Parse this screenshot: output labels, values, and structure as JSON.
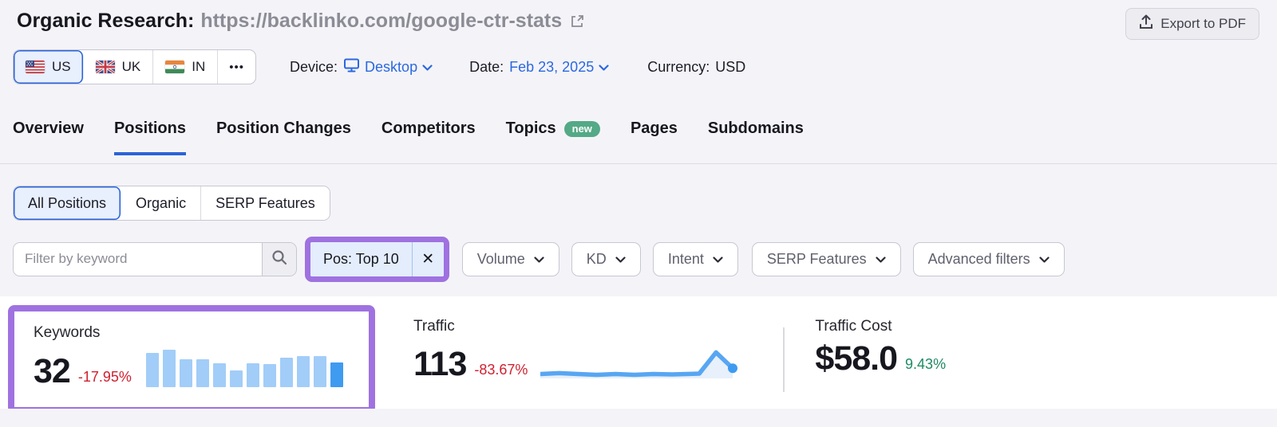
{
  "header": {
    "title_prefix": "Organic Research:",
    "title_url": "https://backlinko.com/google-ctr-stats",
    "export_label": "Export to PDF"
  },
  "controls": {
    "countries": [
      {
        "code": "US",
        "selected": true
      },
      {
        "code": "UK",
        "selected": false
      },
      {
        "code": "IN",
        "selected": false
      }
    ],
    "more_label": "•••",
    "device_label": "Device:",
    "device_value": "Desktop",
    "date_label": "Date:",
    "date_value": "Feb 23, 2025",
    "currency_label": "Currency:",
    "currency_value": "USD"
  },
  "tabs": {
    "items": [
      {
        "label": "Overview"
      },
      {
        "label": "Positions",
        "active": true
      },
      {
        "label": "Position Changes"
      },
      {
        "label": "Competitors"
      },
      {
        "label": "Topics",
        "badge": "new"
      },
      {
        "label": "Pages"
      },
      {
        "label": "Subdomains"
      }
    ]
  },
  "position_filters": {
    "items": [
      {
        "label": "All Positions",
        "selected": true
      },
      {
        "label": "Organic",
        "selected": false
      },
      {
        "label": "SERP Features",
        "selected": false
      }
    ]
  },
  "filter_bar": {
    "keyword_placeholder": "Filter by keyword",
    "chip_label": "Pos: Top 10",
    "chip_close": "✕",
    "dropdowns": [
      "Volume",
      "KD",
      "Intent",
      "SERP Features",
      "Advanced filters"
    ]
  },
  "stats": {
    "keywords": {
      "label": "Keywords",
      "value": "32",
      "change": "-17.95%",
      "trend": "down",
      "bars": {
        "type": "bar",
        "values": [
          91,
          100,
          75,
          75,
          63,
          45,
          64,
          61,
          79,
          82,
          82,
          66
        ]
      }
    },
    "traffic": {
      "label": "Traffic",
      "value": "113",
      "change": "-83.67%",
      "trend": "down",
      "line": {
        "type": "line",
        "points": [
          [
            0,
            74
          ],
          [
            9,
            72
          ],
          [
            18,
            74
          ],
          [
            27,
            76
          ],
          [
            36,
            74
          ],
          [
            45,
            76
          ],
          [
            54,
            74
          ],
          [
            63,
            75
          ],
          [
            70,
            74
          ],
          [
            76,
            73
          ],
          [
            84,
            22
          ],
          [
            92,
            60
          ]
        ]
      }
    },
    "traffic_cost": {
      "label": "Traffic Cost",
      "value": "$58.0",
      "change": "9.43%",
      "trend": "up"
    }
  },
  "colors": {
    "accent_blue": "#2b68e0",
    "highlight_purple": "#9f72e0",
    "negative_red": "#cf2130",
    "positive_green": "#1f8a63",
    "bar_light_blue": "#a2cdf8",
    "bar_dark_blue": "#3f9bf0",
    "badge_green": "#54a987",
    "selected_bg": "#e8effd"
  }
}
